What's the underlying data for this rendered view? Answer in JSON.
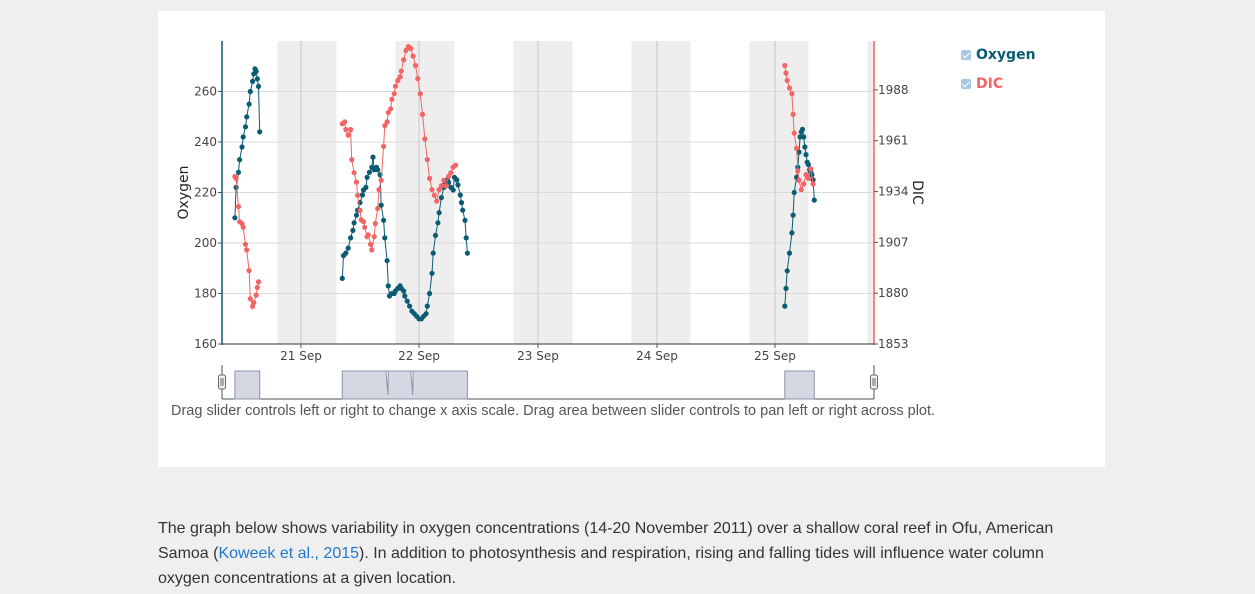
{
  "chart_data": {
    "type": "scatter",
    "title": "",
    "xlabel": "",
    "x_ticks": [
      "21 Sep",
      "22 Sep",
      "23 Sep",
      "24 Sep",
      "25 Sep"
    ],
    "x_range": [
      20.4,
      25.8
    ],
    "ylabel_left": "Oxygen",
    "ylim_left": [
      160,
      280
    ],
    "yticks_left": [
      160,
      180,
      200,
      220,
      240,
      260
    ],
    "ylabel_right": "DIC",
    "ylim_right": [
      1853,
      2014
    ],
    "yticks_right": [
      1853,
      1880,
      1907,
      1934,
      1961,
      1988
    ],
    "night_bands": [
      [
        20.8,
        21.3
      ],
      [
        21.8,
        22.3
      ],
      [
        22.8,
        23.3
      ],
      [
        23.8,
        24.3
      ],
      [
        24.8,
        25.3
      ],
      [
        25.8,
        25.87
      ]
    ],
    "grid": true,
    "legend_position": "top-right",
    "colors": {
      "Oxygen": "#0a5c73",
      "DIC": "#f36464"
    },
    "series": [
      {
        "name": "Oxygen",
        "axis": "left",
        "segments": [
          [
            [
              20.44,
              210
            ],
            [
              20.45,
              222
            ],
            [
              20.47,
              228
            ],
            [
              20.48,
              233
            ],
            [
              20.5,
              238
            ],
            [
              20.51,
              242
            ],
            [
              20.53,
              246
            ],
            [
              20.54,
              250
            ],
            [
              20.56,
              255
            ],
            [
              20.57,
              260
            ],
            [
              20.59,
              264
            ],
            [
              20.6,
              267
            ],
            [
              20.61,
              269
            ],
            [
              20.62,
              268
            ],
            [
              20.63,
              265
            ],
            [
              20.64,
              262
            ],
            [
              20.65,
              244
            ]
          ],
          [
            [
              21.35,
              186
            ],
            [
              21.36,
              195
            ],
            [
              21.38,
              196
            ],
            [
              21.4,
              198
            ],
            [
              21.42,
              202
            ],
            [
              21.44,
              205
            ],
            [
              21.45,
              208
            ],
            [
              21.47,
              211
            ],
            [
              21.48,
              213
            ],
            [
              21.5,
              216
            ],
            [
              21.52,
              219
            ],
            [
              21.53,
              221
            ],
            [
              21.55,
              222
            ],
            [
              21.56,
              226
            ],
            [
              21.58,
              228
            ],
            [
              21.6,
              230
            ],
            [
              21.61,
              234
            ],
            [
              21.62,
              229
            ],
            [
              21.64,
              230
            ],
            [
              21.65,
              229
            ],
            [
              21.67,
              227
            ],
            [
              21.68,
              215
            ],
            [
              21.7,
              209
            ],
            [
              21.71,
              202
            ],
            [
              21.73,
              193
            ],
            [
              21.74,
              183
            ],
            [
              21.75,
              179
            ],
            [
              21.77,
              180
            ],
            [
              21.79,
              180
            ],
            [
              21.8,
              181
            ],
            [
              21.82,
              182
            ],
            [
              21.84,
              183
            ],
            [
              21.85,
              182
            ],
            [
              21.87,
              181
            ],
            [
              21.88,
              179
            ],
            [
              21.9,
              177
            ],
            [
              21.92,
              175
            ],
            [
              21.94,
              173
            ],
            [
              21.96,
              172
            ],
            [
              21.98,
              171
            ],
            [
              22.0,
              170
            ],
            [
              22.02,
              170
            ],
            [
              22.04,
              171
            ],
            [
              22.06,
              172
            ],
            [
              22.07,
              175
            ],
            [
              22.09,
              180
            ],
            [
              22.11,
              188
            ],
            [
              22.12,
              196
            ],
            [
              22.14,
              203
            ],
            [
              22.16,
              208
            ],
            [
              22.17,
              212
            ],
            [
              22.19,
              218
            ],
            [
              22.21,
              222
            ],
            [
              22.22,
              224
            ],
            [
              22.24,
              225
            ],
            [
              22.25,
              224
            ],
            [
              22.27,
              222
            ],
            [
              22.29,
              221
            ],
            [
              22.3,
              226
            ],
            [
              22.32,
              225
            ],
            [
              22.33,
              223
            ],
            [
              22.35,
              219
            ],
            [
              22.36,
              216
            ],
            [
              22.37,
              213
            ],
            [
              22.39,
              209
            ],
            [
              22.4,
              202
            ],
            [
              22.41,
              196
            ]
          ]
        ],
        "tail": [
          [
            25.1,
            175
          ],
          [
            25.11,
            182
          ],
          [
            25.12,
            189
          ],
          [
            25.14,
            196
          ],
          [
            25.16,
            204
          ],
          [
            25.17,
            211
          ],
          [
            25.18,
            220
          ],
          [
            25.2,
            226
          ],
          [
            25.21,
            230
          ],
          [
            25.22,
            236
          ],
          [
            25.23,
            242
          ],
          [
            25.24,
            244
          ],
          [
            25.25,
            245
          ],
          [
            25.26,
            242
          ],
          [
            25.27,
            238
          ],
          [
            25.28,
            235
          ],
          [
            25.29,
            232
          ],
          [
            25.3,
            231
          ],
          [
            25.31,
            229
          ],
          [
            25.32,
            228
          ],
          [
            25.33,
            227
          ],
          [
            25.34,
            225
          ],
          [
            25.35,
            217
          ]
        ]
      },
      {
        "name": "DIC",
        "axis": "right",
        "segments": [
          [
            [
              20.44,
              1942
            ],
            [
              20.45,
              1941
            ],
            [
              20.47,
              1926
            ],
            [
              20.48,
              1918
            ],
            [
              20.5,
              1917
            ],
            [
              20.51,
              1915
            ],
            [
              20.53,
              1906
            ],
            [
              20.54,
              1903
            ],
            [
              20.56,
              1892
            ],
            [
              20.57,
              1877
            ],
            [
              20.59,
              1873
            ],
            [
              20.6,
              1875
            ],
            [
              20.62,
              1879
            ],
            [
              20.63,
              1883
            ],
            [
              20.64,
              1886
            ]
          ],
          [
            [
              21.35,
              1970
            ],
            [
              21.37,
              1971
            ],
            [
              21.38,
              1967
            ],
            [
              21.4,
              1964
            ],
            [
              21.42,
              1967
            ],
            [
              21.43,
              1951
            ],
            [
              21.45,
              1944
            ],
            [
              21.47,
              1939
            ],
            [
              21.48,
              1932
            ],
            [
              21.5,
              1924
            ],
            [
              21.51,
              1919
            ],
            [
              21.53,
              1918
            ],
            [
              21.54,
              1915
            ],
            [
              21.56,
              1910
            ],
            [
              21.57,
              1911
            ],
            [
              21.59,
              1906
            ],
            [
              21.6,
              1903
            ],
            [
              21.62,
              1910
            ],
            [
              21.63,
              1917
            ],
            [
              21.65,
              1925
            ],
            [
              21.66,
              1935
            ],
            [
              21.68,
              1940
            ],
            [
              21.7,
              1958
            ],
            [
              21.71,
              1969
            ],
            [
              21.73,
              1971
            ],
            [
              21.74,
              1976
            ],
            [
              21.76,
              1978
            ],
            [
              21.77,
              1983
            ],
            [
              21.79,
              1986
            ],
            [
              21.8,
              1990
            ],
            [
              21.82,
              1993
            ],
            [
              21.84,
              1995
            ],
            [
              21.85,
              1998
            ],
            [
              21.87,
              2004
            ],
            [
              21.89,
              2009
            ],
            [
              21.91,
              2011
            ],
            [
              21.93,
              2010
            ],
            [
              21.95,
              2006
            ],
            [
              21.97,
              2001
            ],
            [
              21.99,
              1994
            ],
            [
              22.01,
              1986
            ],
            [
              22.03,
              1975
            ],
            [
              22.05,
              1962
            ],
            [
              22.07,
              1951
            ],
            [
              22.09,
              1941
            ],
            [
              22.11,
              1935
            ],
            [
              22.13,
              1932
            ],
            [
              22.15,
              1929
            ],
            [
              22.17,
              1935
            ],
            [
              22.19,
              1937
            ],
            [
              22.21,
              1940
            ],
            [
              22.23,
              1937
            ],
            [
              22.25,
              1942
            ],
            [
              22.27,
              1944
            ],
            [
              22.29,
              1947
            ],
            [
              22.31,
              1948
            ]
          ]
        ],
        "tail": [
          [
            25.1,
            2001
          ],
          [
            25.11,
            1997
          ],
          [
            25.12,
            1993
          ],
          [
            25.14,
            1989
          ],
          [
            25.16,
            1986
          ],
          [
            25.17,
            1975
          ],
          [
            25.18,
            1965
          ],
          [
            25.2,
            1957
          ],
          [
            25.21,
            1945
          ],
          [
            25.22,
            1940
          ],
          [
            25.24,
            1935
          ],
          [
            25.26,
            1938
          ],
          [
            25.28,
            1943
          ],
          [
            25.3,
            1941
          ],
          [
            25.32,
            1946
          ],
          [
            25.34,
            1938
          ]
        ]
      }
    ]
  },
  "legend": {
    "items": [
      {
        "label": "Oxygen",
        "color": "#0a5c73"
      },
      {
        "label": "DIC",
        "color": "#f36464"
      }
    ]
  },
  "slider": {
    "hint": "Drag slider controls left or right to change x axis scale. Drag area between slider controls to pan left or right across plot."
  },
  "description": {
    "part1": "The graph below shows variability in oxygen concentrations (14-20 November 2011) over a shallow coral reef in Ofu, American Samoa (",
    "link": "Koweek et al., 2015",
    "part2": "). In addition to photosynthesis and respiration, rising and falling tides will influence water column oxygen concentrations at a given location."
  }
}
